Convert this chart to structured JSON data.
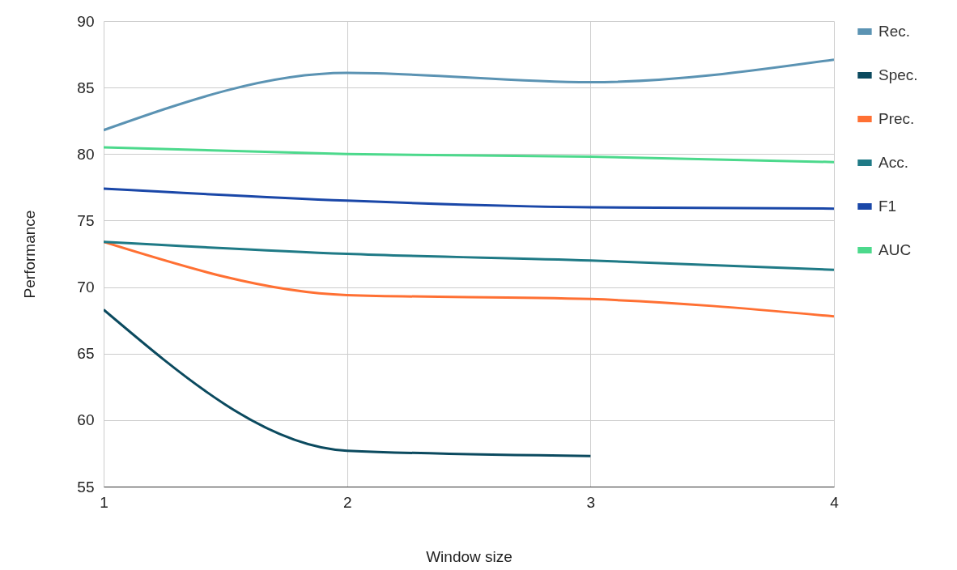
{
  "chart_data": {
    "type": "line",
    "xlabel": "Window size",
    "ylabel": "Performance",
    "x": [
      1,
      2,
      3,
      4
    ],
    "xlim": [
      1,
      4
    ],
    "xticks": [
      1,
      2,
      3,
      4
    ],
    "ylim": [
      55,
      90
    ],
    "yticks": [
      55,
      60,
      65,
      70,
      75,
      80,
      85,
      90
    ],
    "grid": true,
    "legend": "top right",
    "marker": "none",
    "line_style": "solid",
    "series": [
      {
        "name": "Rec.",
        "color": "#5b93b3",
        "values": [
          81.8,
          86.1,
          85.4,
          87.1
        ]
      },
      {
        "name": "Spec.",
        "color": "#0b4a5f",
        "values": [
          68.3,
          57.7,
          57.3,
          null
        ]
      },
      {
        "name": "Prec.",
        "color": "#ff7033",
        "values": [
          73.4,
          69.4,
          69.1,
          67.8
        ]
      },
      {
        "name": "Acc.",
        "color": "#1f7a86",
        "values": [
          73.4,
          72.5,
          72.0,
          71.3
        ]
      },
      {
        "name": "F1",
        "color": "#1a47a8",
        "values": [
          77.4,
          76.5,
          76.0,
          75.9
        ]
      },
      {
        "name": "AUC",
        "color": "#4cd98c",
        "values": [
          80.5,
          80.0,
          79.8,
          79.4
        ]
      }
    ]
  }
}
